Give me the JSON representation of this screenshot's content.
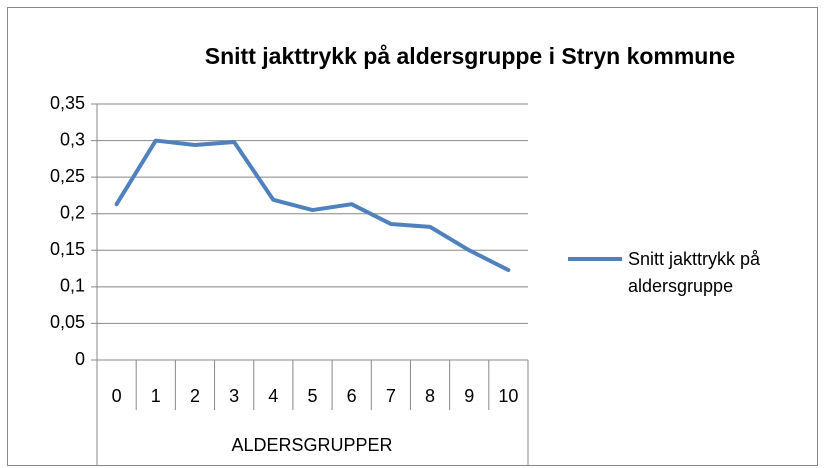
{
  "chart_data": {
    "type": "line",
    "title": "Snitt jakttrykk på aldersgruppe i Stryn kommune",
    "x_label": "ALDERSGRUPPER",
    "categories": [
      "0",
      "1",
      "2",
      "3",
      "4",
      "5",
      "6",
      "7",
      "8",
      "9",
      "10"
    ],
    "series": [
      {
        "name": "Snitt jakttrykk på aldersgruppe",
        "color": "#4f81bd",
        "values": [
          0.213,
          0.3,
          0.294,
          0.298,
          0.219,
          0.205,
          0.213,
          0.186,
          0.182,
          0.15,
          0.123
        ]
      }
    ],
    "ylim": [
      0,
      0.35
    ],
    "yticks": [
      0,
      {
        "value": 0.05,
        "label": "0,05"
      },
      {
        "value": 0.1,
        "label": "0,1"
      },
      {
        "value": 0.15,
        "label": "0,15"
      },
      {
        "value": 0.2,
        "label": "0,2"
      },
      {
        "value": 0.25,
        "label": "0,25"
      },
      {
        "value": 0.3,
        "label": "0,3"
      },
      {
        "value": 0.35,
        "label": "0,35"
      }
    ],
    "grid": true,
    "legend": "right"
  }
}
